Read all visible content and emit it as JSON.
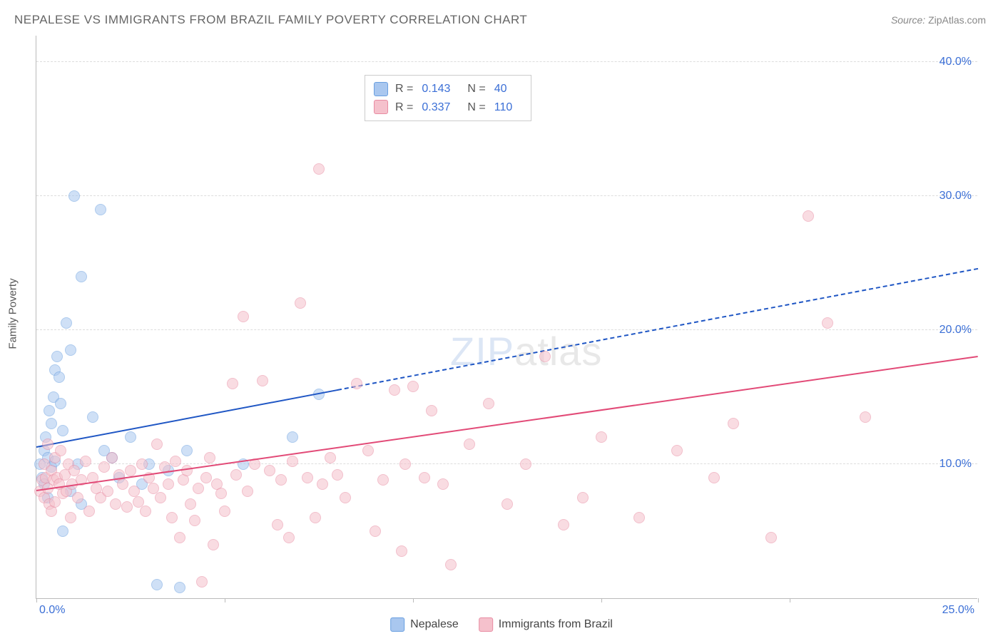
{
  "title": "NEPALESE VS IMMIGRANTS FROM BRAZIL FAMILY POVERTY CORRELATION CHART",
  "source_label": "Source:",
  "source_value": "ZipAtlas.com",
  "ylabel": "Family Poverty",
  "watermark_a": "ZIP",
  "watermark_b": "atlas",
  "chart": {
    "type": "scatter",
    "background_color": "#ffffff",
    "grid_color": "#dddddd",
    "axis_color": "#bbbbbb",
    "tick_label_color": "#3b6fd6",
    "tick_fontsize": 16,
    "xlim": [
      0,
      25
    ],
    "ylim": [
      0,
      42
    ],
    "x_ticks": [
      0,
      5,
      10,
      15,
      20,
      25
    ],
    "x_tick_labels": [
      "0.0%",
      "",
      "",
      "",
      "",
      "25.0%"
    ],
    "y_ticks": [
      10,
      20,
      30,
      40
    ],
    "y_tick_labels": [
      "10.0%",
      "20.0%",
      "30.0%",
      "40.0%"
    ],
    "marker_radius": 8,
    "marker_opacity": 0.55,
    "series": [
      {
        "name": "Nepalese",
        "fill": "#a9c7ef",
        "stroke": "#6a9fe0",
        "trend_color": "#1f56c4",
        "R": "0.143",
        "N": "40",
        "trend": {
          "x1": 0,
          "y1": 11.2,
          "x2": 25,
          "y2": 24.5,
          "solid_until_x": 8
        },
        "points": [
          [
            0.1,
            10.0
          ],
          [
            0.15,
            9.0
          ],
          [
            0.2,
            11.0
          ],
          [
            0.2,
            8.5
          ],
          [
            0.25,
            12.0
          ],
          [
            0.3,
            10.5
          ],
          [
            0.3,
            7.5
          ],
          [
            0.35,
            14.0
          ],
          [
            0.4,
            13.0
          ],
          [
            0.4,
            9.8
          ],
          [
            0.45,
            15.0
          ],
          [
            0.5,
            17.0
          ],
          [
            0.5,
            10.2
          ],
          [
            0.55,
            18.0
          ],
          [
            0.6,
            16.5
          ],
          [
            0.65,
            14.5
          ],
          [
            0.7,
            12.5
          ],
          [
            0.7,
            5.0
          ],
          [
            0.8,
            20.5
          ],
          [
            0.9,
            18.5
          ],
          [
            0.9,
            8.0
          ],
          [
            1.0,
            30.0
          ],
          [
            1.1,
            10.0
          ],
          [
            1.2,
            24.0
          ],
          [
            1.2,
            7.0
          ],
          [
            1.5,
            13.5
          ],
          [
            1.7,
            29.0
          ],
          [
            1.8,
            11.0
          ],
          [
            2.0,
            10.5
          ],
          [
            2.2,
            9.0
          ],
          [
            2.5,
            12.0
          ],
          [
            2.8,
            8.5
          ],
          [
            3.0,
            10.0
          ],
          [
            3.2,
            1.0
          ],
          [
            3.5,
            9.5
          ],
          [
            3.8,
            0.8
          ],
          [
            4.0,
            11.0
          ],
          [
            5.5,
            10.0
          ],
          [
            6.8,
            12.0
          ],
          [
            7.5,
            15.2
          ]
        ]
      },
      {
        "name": "Immigrants from Brazil",
        "fill": "#f5c1cc",
        "stroke": "#e88ba2",
        "trend_color": "#e24a77",
        "R": "0.337",
        "N": "110",
        "trend": {
          "x1": 0,
          "y1": 8.0,
          "x2": 25,
          "y2": 18.0,
          "solid_until_x": 25
        },
        "points": [
          [
            0.1,
            8.0
          ],
          [
            0.15,
            8.8
          ],
          [
            0.2,
            7.5
          ],
          [
            0.2,
            10.0
          ],
          [
            0.25,
            9.0
          ],
          [
            0.3,
            8.2
          ],
          [
            0.3,
            11.5
          ],
          [
            0.35,
            7.0
          ],
          [
            0.4,
            9.5
          ],
          [
            0.4,
            6.5
          ],
          [
            0.45,
            8.8
          ],
          [
            0.5,
            10.5
          ],
          [
            0.5,
            7.2
          ],
          [
            0.55,
            9.0
          ],
          [
            0.6,
            8.5
          ],
          [
            0.65,
            11.0
          ],
          [
            0.7,
            7.8
          ],
          [
            0.75,
            9.2
          ],
          [
            0.8,
            8.0
          ],
          [
            0.85,
            10.0
          ],
          [
            0.9,
            6.0
          ],
          [
            0.95,
            8.5
          ],
          [
            1.0,
            9.5
          ],
          [
            1.1,
            7.5
          ],
          [
            1.2,
            8.8
          ],
          [
            1.3,
            10.2
          ],
          [
            1.4,
            6.5
          ],
          [
            1.5,
            9.0
          ],
          [
            1.6,
            8.2
          ],
          [
            1.7,
            7.5
          ],
          [
            1.8,
            9.8
          ],
          [
            1.9,
            8.0
          ],
          [
            2.0,
            10.5
          ],
          [
            2.1,
            7.0
          ],
          [
            2.2,
            9.2
          ],
          [
            2.3,
            8.5
          ],
          [
            2.4,
            6.8
          ],
          [
            2.5,
            9.5
          ],
          [
            2.6,
            8.0
          ],
          [
            2.7,
            7.2
          ],
          [
            2.8,
            10.0
          ],
          [
            2.9,
            6.5
          ],
          [
            3.0,
            9.0
          ],
          [
            3.1,
            8.2
          ],
          [
            3.2,
            11.5
          ],
          [
            3.3,
            7.5
          ],
          [
            3.4,
            9.8
          ],
          [
            3.5,
            8.5
          ],
          [
            3.6,
            6.0
          ],
          [
            3.7,
            10.2
          ],
          [
            3.8,
            4.5
          ],
          [
            3.9,
            8.8
          ],
          [
            4.0,
            9.5
          ],
          [
            4.1,
            7.0
          ],
          [
            4.2,
            5.8
          ],
          [
            4.3,
            8.2
          ],
          [
            4.4,
            1.2
          ],
          [
            4.5,
            9.0
          ],
          [
            4.6,
            10.5
          ],
          [
            4.7,
            4.0
          ],
          [
            4.8,
            8.5
          ],
          [
            4.9,
            7.8
          ],
          [
            5.0,
            6.5
          ],
          [
            5.2,
            16.0
          ],
          [
            5.3,
            9.2
          ],
          [
            5.5,
            21.0
          ],
          [
            5.6,
            8.0
          ],
          [
            5.8,
            10.0
          ],
          [
            6.0,
            16.2
          ],
          [
            6.2,
            9.5
          ],
          [
            6.4,
            5.5
          ],
          [
            6.5,
            8.8
          ],
          [
            6.7,
            4.5
          ],
          [
            6.8,
            10.2
          ],
          [
            7.0,
            22.0
          ],
          [
            7.2,
            9.0
          ],
          [
            7.4,
            6.0
          ],
          [
            7.5,
            32.0
          ],
          [
            7.6,
            8.5
          ],
          [
            7.8,
            10.5
          ],
          [
            8.0,
            9.2
          ],
          [
            8.2,
            7.5
          ],
          [
            8.5,
            16.0
          ],
          [
            8.8,
            11.0
          ],
          [
            9.0,
            5.0
          ],
          [
            9.2,
            8.8
          ],
          [
            9.5,
            15.5
          ],
          [
            9.7,
            3.5
          ],
          [
            9.8,
            10.0
          ],
          [
            10.0,
            15.8
          ],
          [
            10.3,
            9.0
          ],
          [
            10.5,
            14.0
          ],
          [
            10.8,
            8.5
          ],
          [
            11.0,
            2.5
          ],
          [
            11.5,
            11.5
          ],
          [
            12.0,
            14.5
          ],
          [
            12.5,
            7.0
          ],
          [
            13.0,
            10.0
          ],
          [
            13.5,
            18.0
          ],
          [
            14.0,
            5.5
          ],
          [
            14.5,
            7.5
          ],
          [
            15.0,
            12.0
          ],
          [
            16.0,
            6.0
          ],
          [
            17.0,
            11.0
          ],
          [
            18.0,
            9.0
          ],
          [
            18.5,
            13.0
          ],
          [
            19.5,
            4.5
          ],
          [
            20.5,
            28.5
          ],
          [
            21.0,
            20.5
          ],
          [
            22.0,
            13.5
          ]
        ]
      }
    ]
  },
  "legend_bottom": {
    "items": [
      {
        "label": "Nepalese",
        "fill": "#a9c7ef",
        "stroke": "#6a9fe0"
      },
      {
        "label": "Immigrants from Brazil",
        "fill": "#f5c1cc",
        "stroke": "#e88ba2"
      }
    ]
  }
}
